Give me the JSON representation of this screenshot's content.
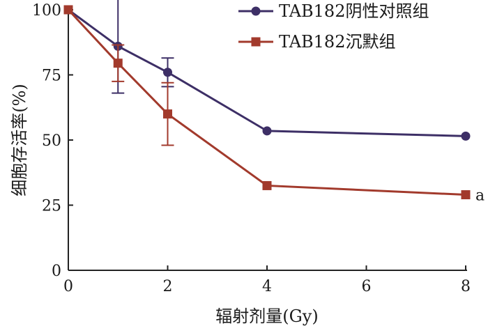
{
  "chart_data": {
    "type": "line",
    "xlabel": "辐射剂量(Gy)",
    "ylabel": "细胞存活率(%)",
    "xlim": [
      0,
      8
    ],
    "ylim": [
      0,
      100
    ],
    "xticks": [
      "0",
      "2",
      "4",
      "6",
      "8"
    ],
    "yticks": [
      "0",
      "25",
      "50",
      "75",
      "100"
    ],
    "grid": false,
    "legend_position": "top-right",
    "series": [
      {
        "name": "TAB182阴性对照组",
        "color": "#3d2f66",
        "marker": "circle",
        "x": [
          0,
          1,
          2,
          4,
          8
        ],
        "y": [
          100,
          86,
          76,
          53.5,
          51.5
        ],
        "error": [
          0,
          18,
          5.5,
          0,
          0
        ]
      },
      {
        "name": "TAB182沉默组",
        "color": "#a23a2c",
        "marker": "square",
        "x": [
          0,
          1,
          2,
          4,
          8
        ],
        "y": [
          100,
          79.5,
          60,
          32.5,
          29
        ],
        "error": [
          0,
          7,
          12,
          0,
          0
        ]
      }
    ],
    "annotations": [
      {
        "text": "a",
        "series": 1,
        "point": 4
      }
    ]
  }
}
